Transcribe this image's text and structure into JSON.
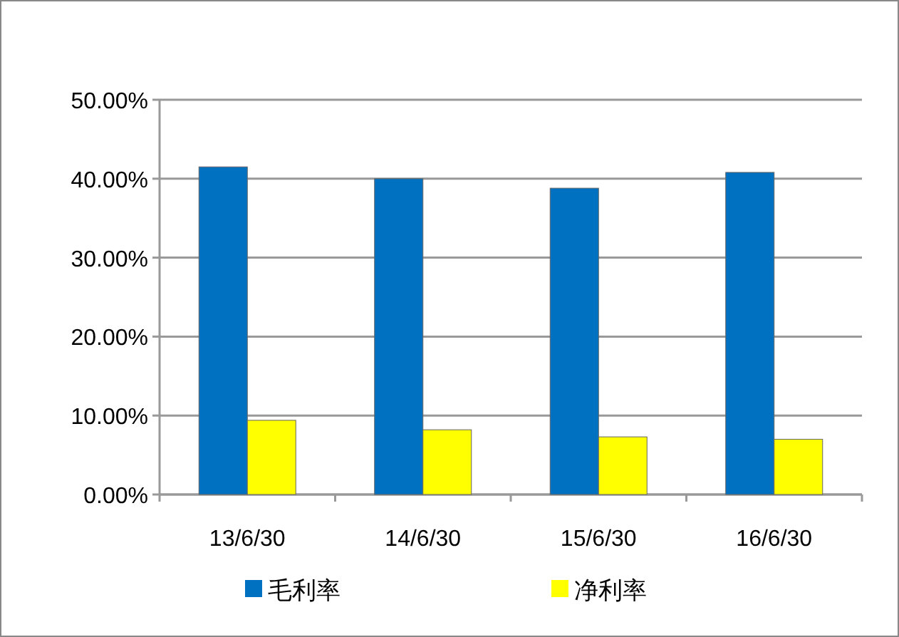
{
  "chart_data": {
    "type": "bar",
    "categories": [
      "13/6/30",
      "14/6/30",
      "15/6/30",
      "16/6/30"
    ],
    "series": [
      {
        "name": "毛利率",
        "color": "#0070c0",
        "values": [
          41.5,
          40,
          38.8,
          40.8
        ]
      },
      {
        "name": "净利率",
        "color": "#ffff00",
        "values": [
          9.4,
          8.2,
          7.3,
          7.0
        ]
      }
    ],
    "ylim": [
      0,
      50
    ],
    "yticks": [
      {
        "value": 0,
        "label": "0.00%"
      },
      {
        "value": 10,
        "label": "10.00%"
      },
      {
        "value": 20,
        "label": "20.00%"
      },
      {
        "value": 30,
        "label": "30.00%"
      },
      {
        "value": 40,
        "label": "40.00%"
      },
      {
        "value": 50,
        "label": "50.00%"
      }
    ],
    "grid": "y",
    "legend": "bottom"
  }
}
